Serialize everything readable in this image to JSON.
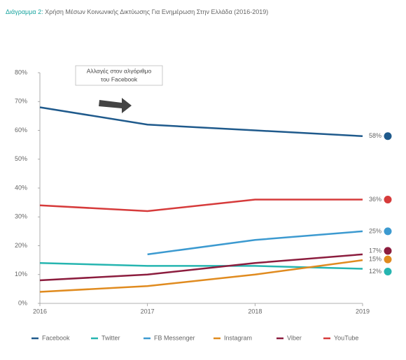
{
  "chart_data": {
    "type": "line",
    "title_label": "Διάγραμμα 2:",
    "title": "Χρήση Μέσων Κοινωνικής Δικτύωσης Για Ενημέρωση Στην Ελλάδα (2016-2019)",
    "annotation": [
      "Αλλαγές στον αλγόριθμο",
      "του Facebook"
    ],
    "categories": [
      "2016",
      "2017",
      "2018",
      "2019"
    ],
    "series": [
      {
        "name": "Facebook",
        "color": "#1f5a8c",
        "values": [
          68,
          62,
          60,
          58
        ],
        "value_labels": [
          null,
          null,
          null,
          "58%"
        ]
      },
      {
        "name": "Twitter",
        "color": "#26b5b0",
        "values": [
          14,
          13,
          13,
          12
        ],
        "value_labels": [
          null,
          null,
          null,
          "12%"
        ]
      },
      {
        "name": "FB Messenger",
        "color": "#3c9ad0",
        "values": [
          null,
          17,
          22,
          25
        ],
        "value_labels": [
          null,
          null,
          null,
          "25%"
        ]
      },
      {
        "name": "Instagram",
        "color": "#e08b1f",
        "values": [
          4,
          6,
          10,
          15
        ],
        "value_labels": [
          null,
          null,
          null,
          "15%"
        ]
      },
      {
        "name": "Viber",
        "color": "#8c1d3e",
        "values": [
          8,
          10,
          14,
          17
        ],
        "value_labels": [
          null,
          null,
          null,
          "17%"
        ]
      },
      {
        "name": "YouTube",
        "color": "#d63b3b",
        "values": [
          34,
          32,
          36,
          36
        ],
        "value_labels": [
          null,
          null,
          null,
          "36%"
        ]
      }
    ],
    "ylim": [
      0,
      80
    ],
    "yticks": [
      {
        "value": 0,
        "label": "0%"
      },
      {
        "value": 10,
        "label": "10%"
      },
      {
        "value": 20,
        "label": "20%"
      },
      {
        "value": 30,
        "label": "30%"
      },
      {
        "value": 40,
        "label": "40%"
      },
      {
        "value": 50,
        "label": "50%"
      },
      {
        "value": 60,
        "label": "60%"
      },
      {
        "value": 70,
        "label": "70%"
      },
      {
        "value": 80,
        "label": "80%"
      }
    ],
    "grid": false
  }
}
